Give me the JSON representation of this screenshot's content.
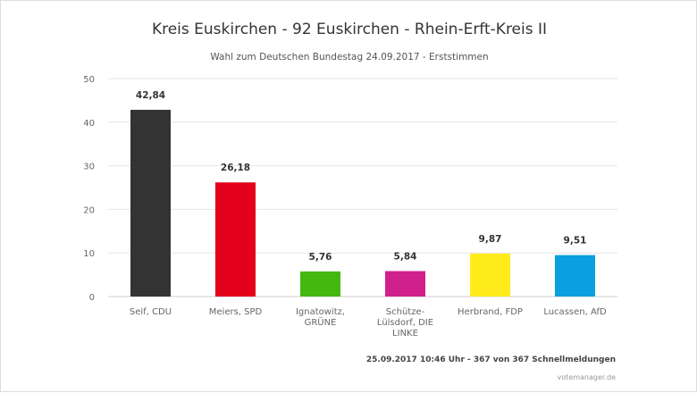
{
  "chart_data": {
    "type": "bar",
    "title": "Kreis Euskirchen - 92 Euskirchen - Rhein-Erft-Kreis II",
    "subtitle": "Wahl zum Deutschen Bundestag 24.09.2017 - Erststimmen",
    "categories": [
      [
        "Seif, CDU"
      ],
      [
        "Meiers, SPD"
      ],
      [
        "Ignatowitz,",
        "GRÜNE"
      ],
      [
        "Schütze-",
        "Lülsdorf, DIE",
        "LINKE"
      ],
      [
        "Herbrand, FDP"
      ],
      [
        "Lucassen, AfD"
      ]
    ],
    "values": [
      42.84,
      26.18,
      5.76,
      5.84,
      9.87,
      9.51
    ],
    "value_labels": [
      "42,84",
      "26,18",
      "5,76",
      "5,84",
      "9,87",
      "9,51"
    ],
    "colors": [
      "#333333",
      "#e2001a",
      "#46b710",
      "#d0208c",
      "#ffec1a",
      "#0a9fde"
    ],
    "ylim": [
      0,
      50
    ],
    "yticks": [
      0,
      10,
      20,
      30,
      40,
      50
    ],
    "grid": true,
    "xlabel": "",
    "ylabel": ""
  },
  "footer": "25.09.2017 10:46 Uhr - 367 von 367 Schnellmeldungen",
  "credit": "votemanager.de"
}
